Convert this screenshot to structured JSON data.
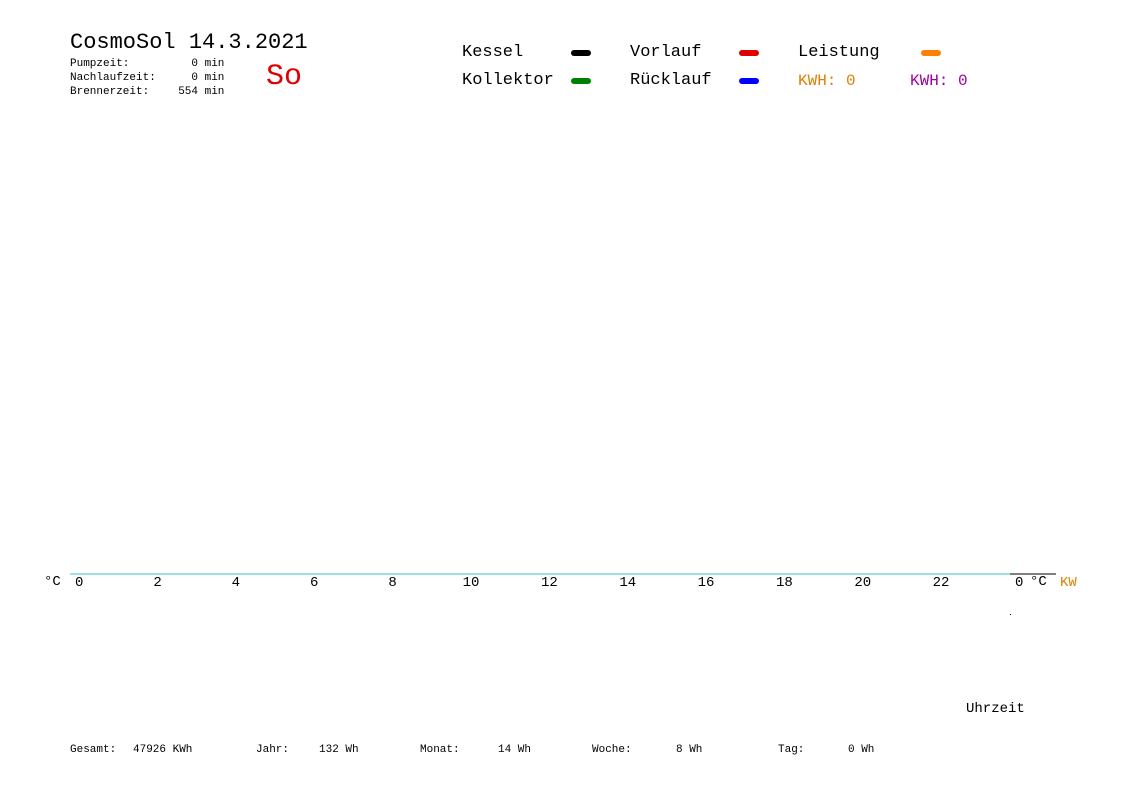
{
  "header": {
    "title": "CosmoSol 14.3.2021",
    "day": "So",
    "stats": [
      {
        "label": "Pumpzeit:",
        "value": "0",
        "unit": "min"
      },
      {
        "label": "Nachlaufzeit:",
        "value": "0",
        "unit": "min"
      },
      {
        "label": "Brennerzeit:",
        "value": "554",
        "unit": "min"
      }
    ]
  },
  "legend": {
    "items": [
      {
        "label": "Kessel",
        "color": "#000000"
      },
      {
        "label": "Vorlauf",
        "color": "#e00000"
      },
      {
        "label": "Leistung",
        "color": "#ff8000"
      },
      {
        "label": "Kollektor",
        "color": "#008000"
      },
      {
        "label": "Rücklauf",
        "color": "#0000ff"
      }
    ],
    "kwh_1": "KWH: 0",
    "kwh_1_color": "#e08000",
    "kwh_2": "KWH: 0",
    "kwh_2_color": "#a000a0"
  },
  "chart_data": {
    "type": "line",
    "x": [
      0,
      2,
      4,
      6,
      8,
      10,
      12,
      14,
      16,
      18,
      20,
      22,
      0
    ],
    "x_tick_labels": [
      "0",
      "2",
      "4",
      "6",
      "8",
      "10",
      "12",
      "14",
      "16",
      "18",
      "20",
      "22",
      "0"
    ],
    "xlabel": "Uhrzeit",
    "ylabel_left": "°C",
    "ylabel_right": "°C",
    "ylabel_kw": "KW",
    "baseline_color": "#40c0c0",
    "kw_color": "#e08000",
    "series": []
  },
  "footer": {
    "gesamt_label": "Gesamt:",
    "gesamt_value": "47926 KWh",
    "jahr_label": "Jahr:",
    "jahr_value": "132 Wh",
    "monat_label": "Monat:",
    "monat_value": "14 Wh",
    "woche_label": "Woche:",
    "woche_value": "8 Wh",
    "tag_label": "Tag:",
    "tag_value": "0 Wh"
  }
}
